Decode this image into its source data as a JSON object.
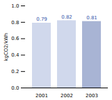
{
  "chart_data": {
    "type": "bar",
    "categories": [
      "2001",
      "2002",
      "2003"
    ],
    "values": [
      0.79,
      0.82,
      0.81
    ],
    "colors": [
      "#d0d8ec",
      "#d0d8ec",
      "#a8b4d4"
    ],
    "ylabel": "kgCO2/kWh",
    "ylim": [
      0.0,
      1.0
    ],
    "yticks": [
      {
        "value": 0,
        "label": "0.0"
      },
      0.2,
      0.4,
      0.6,
      0.8,
      {
        "value": 1,
        "label": "1.0"
      }
    ],
    "data_labels": true,
    "grid": false
  }
}
